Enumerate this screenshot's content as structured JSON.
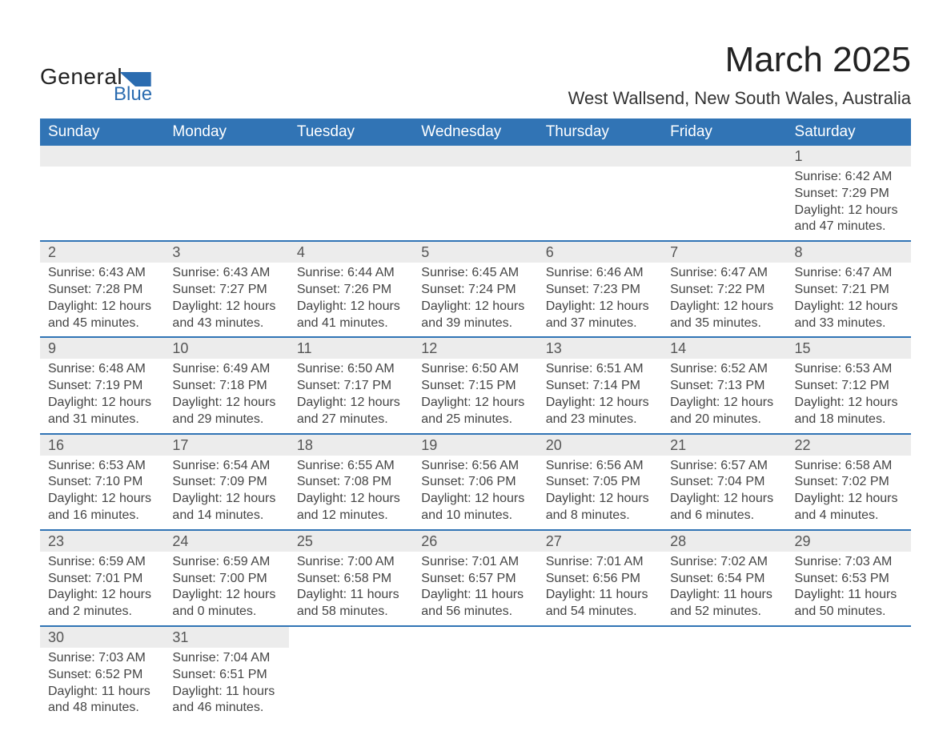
{
  "logo": {
    "main": "General",
    "sub": "Blue"
  },
  "title": "March 2025",
  "location": "West Wallsend, New South Wales, Australia",
  "colors": {
    "header_bg": "#3174b5",
    "header_text": "#ffffff",
    "row_divider": "#3174b5",
    "daynum_bg": "#ececec",
    "body_text": "#444444",
    "logo_accent": "#2b6cb0"
  },
  "weekdays": [
    "Sunday",
    "Monday",
    "Tuesday",
    "Wednesday",
    "Thursday",
    "Friday",
    "Saturday"
  ],
  "weeks": [
    [
      null,
      null,
      null,
      null,
      null,
      null,
      {
        "n": "1",
        "sr": "Sunrise: 6:42 AM",
        "ss": "Sunset: 7:29 PM",
        "dl": "Daylight: 12 hours and 47 minutes."
      }
    ],
    [
      {
        "n": "2",
        "sr": "Sunrise: 6:43 AM",
        "ss": "Sunset: 7:28 PM",
        "dl": "Daylight: 12 hours and 45 minutes."
      },
      {
        "n": "3",
        "sr": "Sunrise: 6:43 AM",
        "ss": "Sunset: 7:27 PM",
        "dl": "Daylight: 12 hours and 43 minutes."
      },
      {
        "n": "4",
        "sr": "Sunrise: 6:44 AM",
        "ss": "Sunset: 7:26 PM",
        "dl": "Daylight: 12 hours and 41 minutes."
      },
      {
        "n": "5",
        "sr": "Sunrise: 6:45 AM",
        "ss": "Sunset: 7:24 PM",
        "dl": "Daylight: 12 hours and 39 minutes."
      },
      {
        "n": "6",
        "sr": "Sunrise: 6:46 AM",
        "ss": "Sunset: 7:23 PM",
        "dl": "Daylight: 12 hours and 37 minutes."
      },
      {
        "n": "7",
        "sr": "Sunrise: 6:47 AM",
        "ss": "Sunset: 7:22 PM",
        "dl": "Daylight: 12 hours and 35 minutes."
      },
      {
        "n": "8",
        "sr": "Sunrise: 6:47 AM",
        "ss": "Sunset: 7:21 PM",
        "dl": "Daylight: 12 hours and 33 minutes."
      }
    ],
    [
      {
        "n": "9",
        "sr": "Sunrise: 6:48 AM",
        "ss": "Sunset: 7:19 PM",
        "dl": "Daylight: 12 hours and 31 minutes."
      },
      {
        "n": "10",
        "sr": "Sunrise: 6:49 AM",
        "ss": "Sunset: 7:18 PM",
        "dl": "Daylight: 12 hours and 29 minutes."
      },
      {
        "n": "11",
        "sr": "Sunrise: 6:50 AM",
        "ss": "Sunset: 7:17 PM",
        "dl": "Daylight: 12 hours and 27 minutes."
      },
      {
        "n": "12",
        "sr": "Sunrise: 6:50 AM",
        "ss": "Sunset: 7:15 PM",
        "dl": "Daylight: 12 hours and 25 minutes."
      },
      {
        "n": "13",
        "sr": "Sunrise: 6:51 AM",
        "ss": "Sunset: 7:14 PM",
        "dl": "Daylight: 12 hours and 23 minutes."
      },
      {
        "n": "14",
        "sr": "Sunrise: 6:52 AM",
        "ss": "Sunset: 7:13 PM",
        "dl": "Daylight: 12 hours and 20 minutes."
      },
      {
        "n": "15",
        "sr": "Sunrise: 6:53 AM",
        "ss": "Sunset: 7:12 PM",
        "dl": "Daylight: 12 hours and 18 minutes."
      }
    ],
    [
      {
        "n": "16",
        "sr": "Sunrise: 6:53 AM",
        "ss": "Sunset: 7:10 PM",
        "dl": "Daylight: 12 hours and 16 minutes."
      },
      {
        "n": "17",
        "sr": "Sunrise: 6:54 AM",
        "ss": "Sunset: 7:09 PM",
        "dl": "Daylight: 12 hours and 14 minutes."
      },
      {
        "n": "18",
        "sr": "Sunrise: 6:55 AM",
        "ss": "Sunset: 7:08 PM",
        "dl": "Daylight: 12 hours and 12 minutes."
      },
      {
        "n": "19",
        "sr": "Sunrise: 6:56 AM",
        "ss": "Sunset: 7:06 PM",
        "dl": "Daylight: 12 hours and 10 minutes."
      },
      {
        "n": "20",
        "sr": "Sunrise: 6:56 AM",
        "ss": "Sunset: 7:05 PM",
        "dl": "Daylight: 12 hours and 8 minutes."
      },
      {
        "n": "21",
        "sr": "Sunrise: 6:57 AM",
        "ss": "Sunset: 7:04 PM",
        "dl": "Daylight: 12 hours and 6 minutes."
      },
      {
        "n": "22",
        "sr": "Sunrise: 6:58 AM",
        "ss": "Sunset: 7:02 PM",
        "dl": "Daylight: 12 hours and 4 minutes."
      }
    ],
    [
      {
        "n": "23",
        "sr": "Sunrise: 6:59 AM",
        "ss": "Sunset: 7:01 PM",
        "dl": "Daylight: 12 hours and 2 minutes."
      },
      {
        "n": "24",
        "sr": "Sunrise: 6:59 AM",
        "ss": "Sunset: 7:00 PM",
        "dl": "Daylight: 12 hours and 0 minutes."
      },
      {
        "n": "25",
        "sr": "Sunrise: 7:00 AM",
        "ss": "Sunset: 6:58 PM",
        "dl": "Daylight: 11 hours and 58 minutes."
      },
      {
        "n": "26",
        "sr": "Sunrise: 7:01 AM",
        "ss": "Sunset: 6:57 PM",
        "dl": "Daylight: 11 hours and 56 minutes."
      },
      {
        "n": "27",
        "sr": "Sunrise: 7:01 AM",
        "ss": "Sunset: 6:56 PM",
        "dl": "Daylight: 11 hours and 54 minutes."
      },
      {
        "n": "28",
        "sr": "Sunrise: 7:02 AM",
        "ss": "Sunset: 6:54 PM",
        "dl": "Daylight: 11 hours and 52 minutes."
      },
      {
        "n": "29",
        "sr": "Sunrise: 7:03 AM",
        "ss": "Sunset: 6:53 PM",
        "dl": "Daylight: 11 hours and 50 minutes."
      }
    ],
    [
      {
        "n": "30",
        "sr": "Sunrise: 7:03 AM",
        "ss": "Sunset: 6:52 PM",
        "dl": "Daylight: 11 hours and 48 minutes."
      },
      {
        "n": "31",
        "sr": "Sunrise: 7:04 AM",
        "ss": "Sunset: 6:51 PM",
        "dl": "Daylight: 11 hours and 46 minutes."
      },
      null,
      null,
      null,
      null,
      null
    ]
  ]
}
